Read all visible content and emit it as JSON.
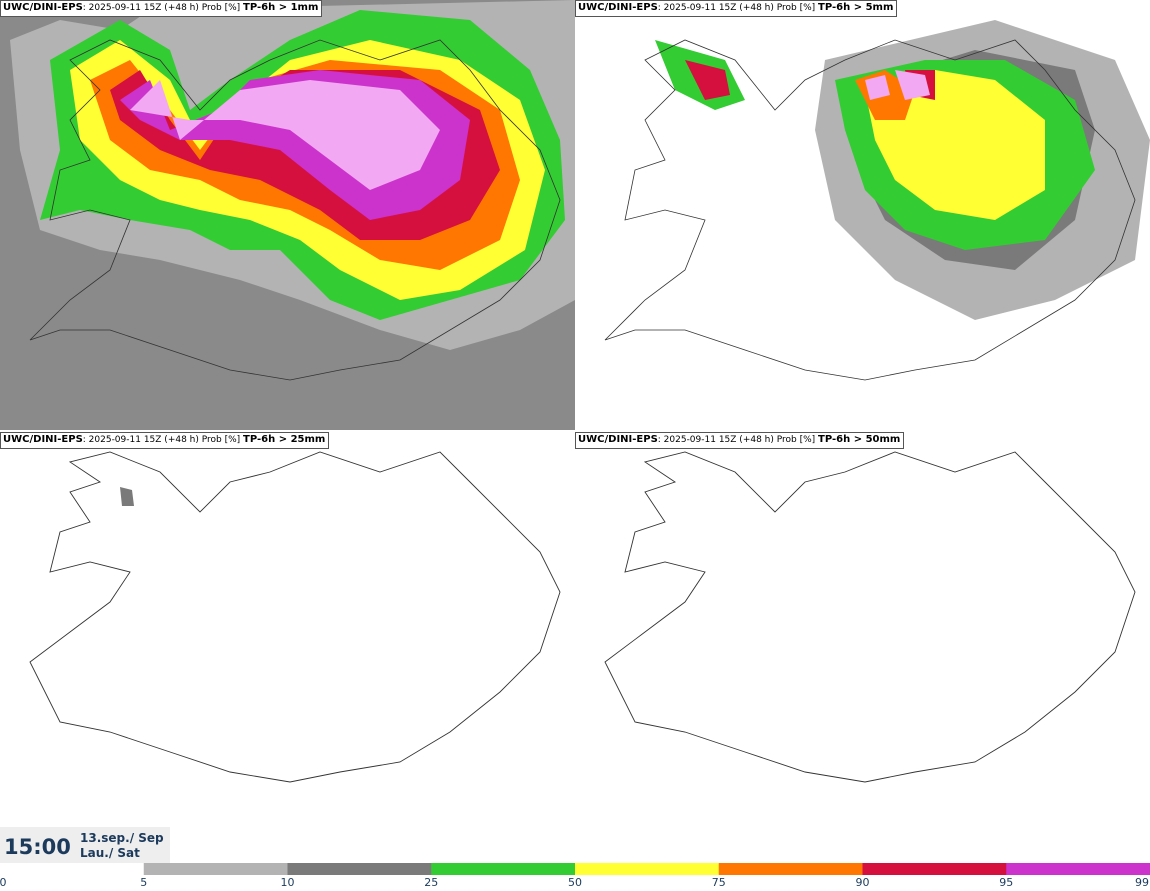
{
  "panels": [
    {
      "model": "UWC/DINI-EPS",
      "run": ": 2025-09-11 15Z (+48 h) Prob [%]",
      "threshold": "TP-6h > 1mm"
    },
    {
      "model": "UWC/DINI-EPS",
      "run": ": 2025-09-11 15Z (+48 h) Prob [%]",
      "threshold": "TP-6h > 5mm"
    },
    {
      "model": "UWC/DINI-EPS",
      "run": ": 2025-09-11 15Z (+48 h) Prob [%]",
      "threshold": "TP-6h > 25mm"
    },
    {
      "model": "UWC/DINI-EPS",
      "run": ": 2025-09-11 15Z (+48 h) Prob [%]",
      "threshold": "TP-6h > 50mm"
    }
  ],
  "valid_time": {
    "time": "15:00",
    "date": "13.sep./ Sep",
    "day": "Lau./ Sat"
  },
  "colorbar": {
    "ticks": [
      "0",
      "5",
      "10",
      "25",
      "50",
      "75",
      "90",
      "95",
      "99"
    ],
    "colors": [
      "#ffffff",
      "#b3b3b3",
      "#7a7a7a",
      "#33cc33",
      "#ffff33",
      "#ff7700",
      "#d6103e",
      "#cc33cc",
      "#f2a8f2"
    ]
  }
}
